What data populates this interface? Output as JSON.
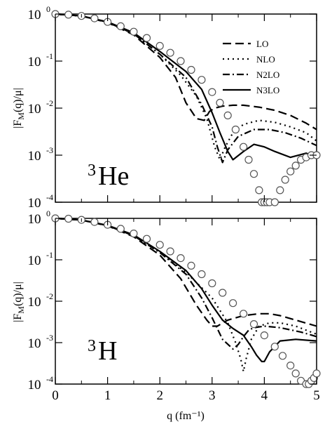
{
  "chart_data": [
    {
      "type": "line",
      "panel": "top",
      "annotation_mass": "3",
      "annotation_symbol": "He",
      "ylabel": "|F_M(q)/μ|",
      "yscale": "log",
      "ylim": [
        0.0001,
        1
      ],
      "xlim": [
        0,
        5
      ],
      "x_ticks": [
        "0",
        "1",
        "2",
        "3",
        "4",
        "5"
      ],
      "x_tick_labels_shown": false,
      "y_ticks": [
        {
          "value": 1,
          "mantissa": "10",
          "exp": "0"
        },
        {
          "value": 0.1,
          "mantissa": "10",
          "exp": "-1"
        },
        {
          "value": 0.01,
          "mantissa": "10",
          "exp": "-2"
        },
        {
          "value": 0.001,
          "mantissa": "10",
          "exp": "-3"
        },
        {
          "value": 0.0001,
          "mantissa": "10",
          "exp": "-4"
        }
      ],
      "legend": {
        "placement": "top-right",
        "entries": [
          "LO",
          "NLO",
          "N2LO",
          "N3LO"
        ]
      },
      "series": [
        {
          "name": "LO",
          "style": "dashed",
          "x": [
            0,
            0.5,
            1,
            1.5,
            2,
            2.3,
            2.5,
            2.7,
            2.85,
            2.95,
            3.05,
            3.2,
            3.4,
            3.6,
            3.9,
            4.2,
            4.5,
            4.8,
            5
          ],
          "y": [
            1,
            0.91,
            0.66,
            0.36,
            0.12,
            0.045,
            0.013,
            0.006,
            0.0055,
            0.0085,
            0.01,
            0.011,
            0.0115,
            0.0115,
            0.0105,
            0.009,
            0.007,
            0.0048,
            0.0035
          ]
        },
        {
          "name": "NLO",
          "style": "dotted",
          "x": [
            0,
            0.5,
            1,
            1.5,
            2,
            2.4,
            2.7,
            2.9,
            3.05,
            3.15,
            3.25,
            3.4,
            3.6,
            3.9,
            4.2,
            4.5,
            4.8,
            5
          ],
          "y": [
            1,
            0.91,
            0.67,
            0.38,
            0.14,
            0.05,
            0.018,
            0.006,
            0.0015,
            0.0008,
            0.0015,
            0.003,
            0.0045,
            0.0055,
            0.005,
            0.004,
            0.003,
            0.002
          ]
        },
        {
          "name": "N2LO",
          "style": "dash-dot",
          "x": [
            0,
            0.5,
            1,
            1.5,
            2,
            2.5,
            2.8,
            3,
            3.1,
            3.2,
            3.3,
            3.5,
            3.8,
            4.1,
            4.4,
            4.7,
            5
          ],
          "y": [
            1,
            0.91,
            0.67,
            0.38,
            0.14,
            0.045,
            0.012,
            0.004,
            0.0015,
            0.0007,
            0.0013,
            0.0025,
            0.0035,
            0.0035,
            0.003,
            0.0023,
            0.0016
          ]
        },
        {
          "name": "N3LO",
          "style": "solid",
          "x": [
            0,
            0.5,
            1,
            1.5,
            2,
            2.5,
            2.8,
            3.0,
            3.15,
            3.3,
            3.4,
            3.6,
            3.8,
            4.0,
            4.2,
            4.5,
            4.8,
            5
          ],
          "y": [
            1,
            0.91,
            0.68,
            0.4,
            0.16,
            0.06,
            0.025,
            0.008,
            0.003,
            0.0012,
            0.0008,
            0.0012,
            0.0017,
            0.0015,
            0.0012,
            0.0009,
            0.0011,
            0.0009
          ]
        },
        {
          "name": "",
          "style": "circles",
          "x": [
            0,
            0.25,
            0.5,
            0.75,
            1,
            1.25,
            1.5,
            1.75,
            2,
            2.2,
            2.4,
            2.6,
            2.8,
            3.0,
            3.15,
            3.3,
            3.45,
            3.6,
            3.7,
            3.8,
            3.9,
            3.95,
            4.0,
            4.05,
            4.1,
            4.2,
            4.3,
            4.4,
            4.5,
            4.6,
            4.7,
            4.8,
            4.9,
            5.0
          ],
          "y": [
            1,
            0.97,
            0.91,
            0.81,
            0.68,
            0.55,
            0.42,
            0.31,
            0.21,
            0.15,
            0.1,
            0.065,
            0.04,
            0.022,
            0.013,
            0.007,
            0.0035,
            0.0015,
            0.0008,
            0.0004,
            0.00018,
            0.0001,
            0.0001,
            0.0001,
            0.0001,
            0.0001,
            0.00018,
            0.0003,
            0.00045,
            0.0006,
            0.0008,
            0.0009,
            0.001,
            0.001
          ]
        }
      ]
    },
    {
      "type": "line",
      "panel": "bottom",
      "annotation_mass": "3",
      "annotation_symbol": "H",
      "ylabel": "|F_M(q)/μ|",
      "xlabel": "q (fm⁻¹)",
      "yscale": "log",
      "ylim": [
        0.0001,
        1
      ],
      "xlim": [
        0,
        5
      ],
      "x_ticks": [
        "0",
        "1",
        "2",
        "3",
        "4",
        "5"
      ],
      "x_tick_labels_shown": true,
      "y_ticks": [
        {
          "value": 1,
          "mantissa": "10",
          "exp": "0"
        },
        {
          "value": 0.1,
          "mantissa": "10",
          "exp": "-1"
        },
        {
          "value": 0.01,
          "mantissa": "10",
          "exp": "-2"
        },
        {
          "value": 0.001,
          "mantissa": "10",
          "exp": "-3"
        },
        {
          "value": 0.0001,
          "mantissa": "10",
          "exp": "-4"
        }
      ],
      "series": [
        {
          "name": "LO",
          "style": "dashed",
          "x": [
            0,
            0.5,
            1,
            1.5,
            2,
            2.4,
            2.7,
            2.9,
            3.0,
            3.1,
            3.3,
            3.6,
            3.9,
            4.1,
            4.3,
            4.6,
            5
          ],
          "y": [
            1,
            0.91,
            0.66,
            0.36,
            0.13,
            0.035,
            0.008,
            0.0035,
            0.0025,
            0.0025,
            0.0035,
            0.0045,
            0.005,
            0.005,
            0.0045,
            0.0035,
            0.0025
          ]
        },
        {
          "name": "NLO",
          "style": "dotted",
          "x": [
            0,
            0.5,
            1,
            1.5,
            2,
            2.5,
            3,
            3.3,
            3.45,
            3.55,
            3.6,
            3.65,
            3.75,
            3.9,
            4.1,
            4.3,
            4.6,
            5
          ],
          "y": [
            1,
            0.91,
            0.67,
            0.38,
            0.15,
            0.05,
            0.012,
            0.003,
            0.001,
            0.0004,
            0.0002,
            0.0004,
            0.0012,
            0.0025,
            0.003,
            0.003,
            0.0025,
            0.0016
          ]
        },
        {
          "name": "N2LO",
          "style": "dash-dot",
          "x": [
            0,
            0.5,
            1,
            1.5,
            2,
            2.5,
            2.8,
            3.0,
            3.2,
            3.4,
            3.5,
            3.6,
            3.7,
            3.8,
            4.0,
            4.3,
            4.7,
            5
          ],
          "y": [
            1,
            0.91,
            0.67,
            0.38,
            0.15,
            0.045,
            0.012,
            0.004,
            0.0012,
            0.0007,
            0.0009,
            0.0014,
            0.002,
            0.0023,
            0.0025,
            0.0023,
            0.0018,
            0.0014
          ]
        },
        {
          "name": "N3LO",
          "style": "solid",
          "x": [
            0,
            0.5,
            1,
            1.5,
            2,
            2.5,
            2.8,
            3.0,
            3.2,
            3.4,
            3.6,
            3.75,
            3.85,
            3.95,
            4.0,
            4.1,
            4.3,
            4.6,
            5
          ],
          "y": [
            1,
            0.91,
            0.68,
            0.4,
            0.16,
            0.055,
            0.02,
            0.008,
            0.0035,
            0.0022,
            0.0015,
            0.0008,
            0.0005,
            0.00035,
            0.00035,
            0.0006,
            0.0011,
            0.0012,
            0.0011
          ]
        },
        {
          "name": "",
          "style": "circles",
          "x": [
            0,
            0.25,
            0.5,
            0.75,
            1,
            1.25,
            1.5,
            1.75,
            2,
            2.2,
            2.4,
            2.6,
            2.8,
            3.0,
            3.2,
            3.4,
            3.6,
            3.8,
            4.0,
            4.2,
            4.35,
            4.5,
            4.6,
            4.7,
            4.8,
            4.85,
            4.9,
            4.95,
            5.0
          ],
          "y": [
            1,
            0.98,
            0.92,
            0.82,
            0.7,
            0.56,
            0.43,
            0.32,
            0.23,
            0.16,
            0.11,
            0.072,
            0.045,
            0.027,
            0.016,
            0.009,
            0.005,
            0.0028,
            0.0015,
            0.0008,
            0.00048,
            0.00028,
            0.00018,
            0.00012,
            0.0001,
            0.0001,
            0.00012,
            0.00014,
            0.00018
          ]
        }
      ]
    }
  ]
}
